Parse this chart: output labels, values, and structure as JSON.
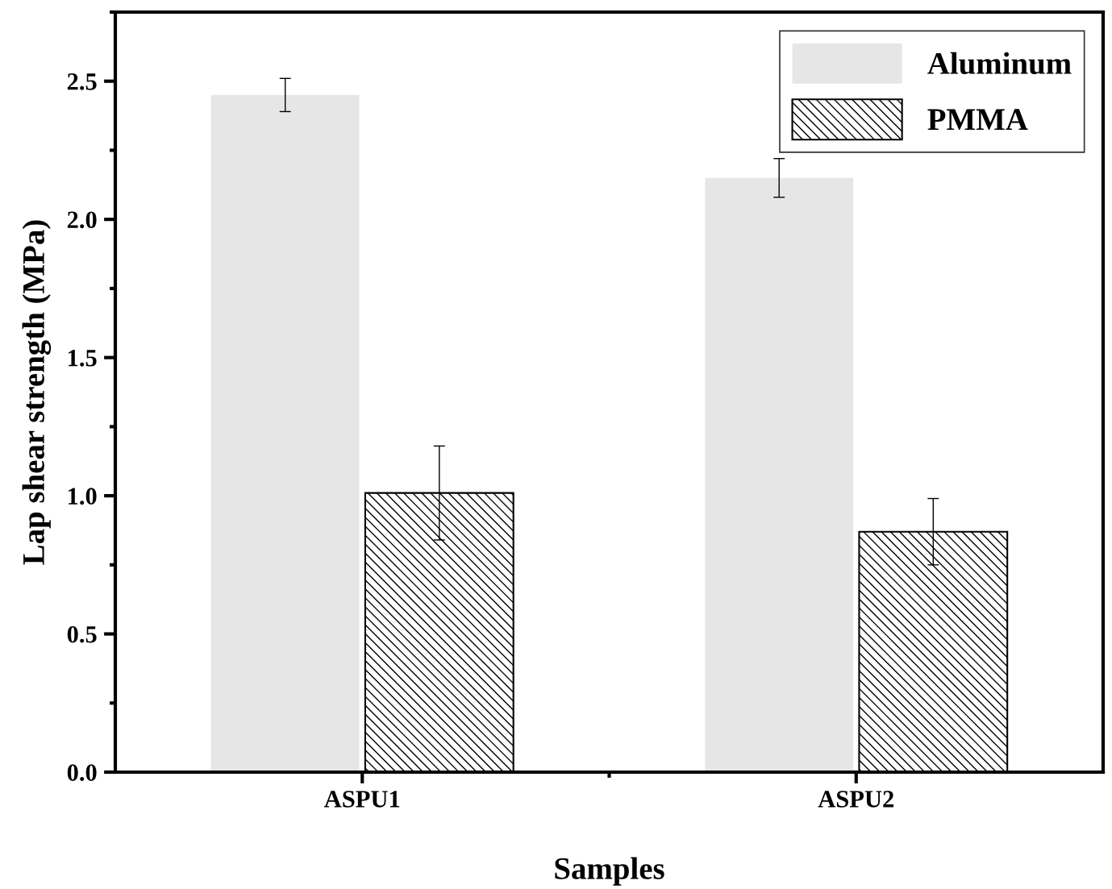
{
  "chart_data": {
    "type": "bar",
    "xlabel": "Samples",
    "ylabel": "Lap shear strength (MPa)",
    "categories": [
      "ASPU1",
      "ASPU2"
    ],
    "series": [
      {
        "name": "Aluminum",
        "color": "#e6e6e6",
        "values": [
          2.45,
          2.15
        ],
        "errors": [
          0.06,
          0.07
        ]
      },
      {
        "name": "PMMA",
        "color": "#000000",
        "values": [
          1.01,
          0.87
        ],
        "errors": [
          0.17,
          0.12
        ]
      }
    ],
    "ylim": [
      0,
      2.75
    ],
    "yticks": [
      {
        "value": 0,
        "label": "0.0"
      },
      0.5,
      {
        "value": 1,
        "label": "1.0"
      },
      1.5,
      {
        "value": 2,
        "label": "2.0"
      },
      2.5
    ],
    "grid": false,
    "legend": "top right"
  }
}
